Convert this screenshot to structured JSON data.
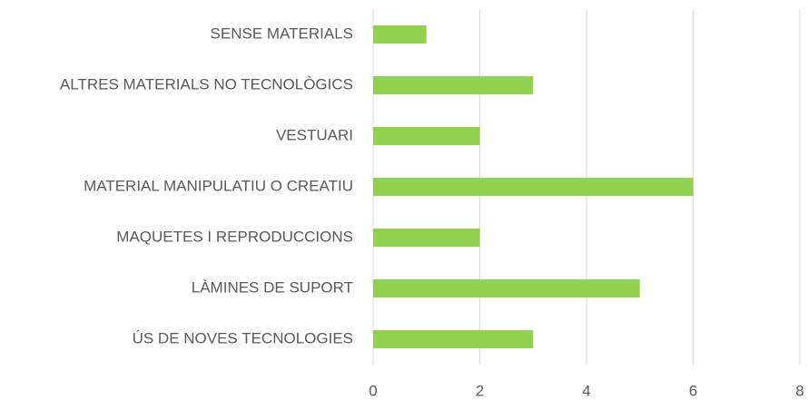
{
  "chart_data": {
    "type": "bar",
    "orientation": "horizontal",
    "categories": [
      "SENSE MATERIALS",
      "ALTRES MATERIALS NO TECNOLÒGICS",
      "VESTUARI",
      "MATERIAL MANIPULATIU O CREATIU",
      "MAQUETES I REPRODUCCIONS",
      "LÀMINES DE SUPORT",
      "ÚS DE NOVES TECNOLOGIES"
    ],
    "values": [
      1,
      3,
      2,
      6,
      2,
      5,
      3
    ],
    "color": "#92d050",
    "xlim": [
      0,
      8
    ],
    "xticks": [
      0,
      2,
      4,
      6,
      8
    ],
    "grid": true
  }
}
